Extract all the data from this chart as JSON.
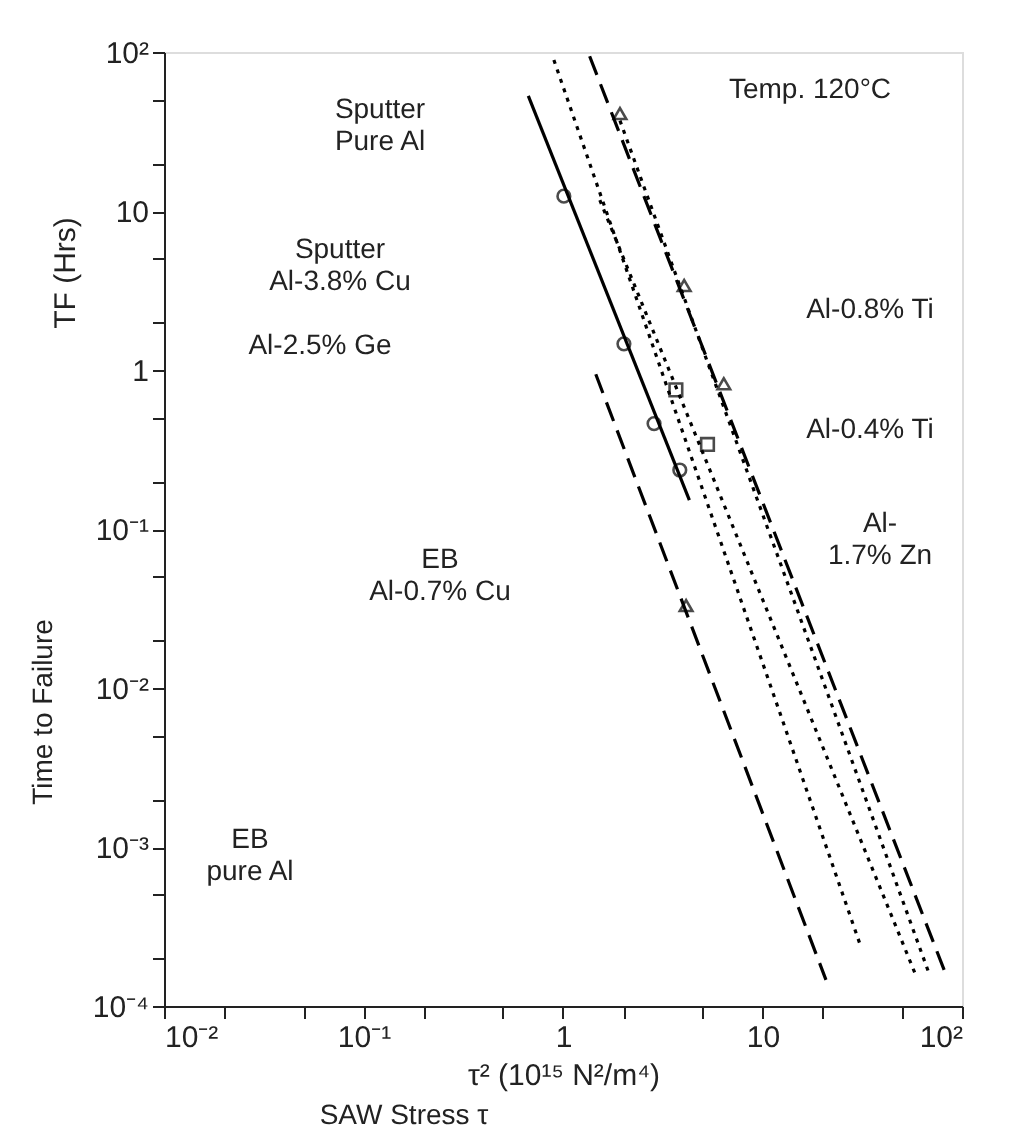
{
  "chart_data": {
    "type": "line",
    "xlabel": "τ² (10¹⁵ N²/m⁴)",
    "ylabel": "TF (Hrs)",
    "log": "xy",
    "grid": false,
    "xlim": [
      0.01,
      100
    ],
    "ylim": [
      0.0001,
      100
    ],
    "xticks": [
      {
        "value": 0.01,
        "label": "10⁻²"
      },
      {
        "value": 0.02,
        "label": null
      },
      {
        "value": 0.05,
        "label": null
      },
      {
        "value": 0.1,
        "label": "10⁻¹"
      },
      {
        "value": 0.2,
        "label": null
      },
      {
        "value": 0.5,
        "label": null
      },
      1,
      {
        "value": 2,
        "label": null
      },
      {
        "value": 5,
        "label": null
      },
      10,
      {
        "value": 20,
        "label": null
      },
      {
        "value": 50,
        "label": null
      },
      {
        "value": 100,
        "label": "10²"
      }
    ],
    "yticks": [
      {
        "value": 0.0001,
        "label": "10⁻⁴"
      },
      {
        "value": 0.0002,
        "label": null
      },
      {
        "value": 0.0005,
        "label": null
      },
      {
        "value": 0.001,
        "label": "10⁻³"
      },
      {
        "value": 0.002,
        "label": null
      },
      {
        "value": 0.005,
        "label": null
      },
      {
        "value": 0.01,
        "label": "10⁻²"
      },
      {
        "value": 0.02,
        "label": null
      },
      {
        "value": 0.05,
        "label": null
      },
      {
        "value": 0.1,
        "label": "10⁻¹"
      },
      {
        "value": 0.2,
        "label": null
      },
      {
        "value": 0.5,
        "label": null
      },
      1,
      {
        "value": 2,
        "label": null
      },
      {
        "value": 5,
        "label": null
      },
      10,
      {
        "value": 20,
        "label": null
      },
      {
        "value": 50,
        "label": null
      },
      {
        "value": 100,
        "label": "10²"
      }
    ],
    "series": [
      {
        "line_style": "solid",
        "color": "#000000",
        "x": [
          0.67,
          4.3
        ],
        "values": [
          53,
          0.152
        ]
      },
      {
        "line_style": "dashed",
        "color": "#000000",
        "x": [
          1.46,
          20.8
        ],
        "values": [
          0.94,
          0.000146
        ]
      },
      {
        "line_style": "dotted",
        "color": "#000000",
        "x": [
          0.9,
          30.8
        ],
        "values": [
          89,
          0.000245
        ]
      },
      {
        "line_style": "dotted",
        "color": "#000000",
        "x": [
          1.53,
          58.8
        ],
        "values": [
          11.7,
          0.000155
        ]
      },
      {
        "line_style": "dashed",
        "color": "#000000",
        "x": [
          1.36,
          83
        ],
        "values": [
          94,
          0.000158
        ]
      },
      {
        "line_style": "dotted",
        "color": "#000000",
        "x": [
          1.93,
          69
        ],
        "values": [
          37,
          0.000155
        ]
      },
      {
        "type": "scatter",
        "marker": "circle",
        "color": "#000000",
        "x": [
          1.01,
          2.02,
          2.86,
          3.85
        ],
        "values": [
          12.4,
          1.46,
          0.46,
          0.235
        ]
      },
      {
        "type": "scatter",
        "marker": "triangle",
        "color": "#000000",
        "x": [
          1.93,
          4.05,
          6.4,
          4.14
        ],
        "values": [
          41,
          3.4,
          0.82,
          0.033
        ]
      },
      {
        "type": "scatter",
        "marker": "square",
        "color": "#000000",
        "x": [
          3.68,
          5.3
        ],
        "values": [
          0.75,
          0.34
        ]
      }
    ],
    "annotations": [
      "Sputter\nPure Al",
      "Sputter\nAl-3.8% Cu",
      "Al-2.5% Ge",
      "Temp. 120°C",
      "Al-0.8% Ti",
      "Al-0.4% Ti",
      "Al-\n1.7% Zn",
      "EB\nAl-0.7% Cu",
      "EB\npure Al",
      "Time to Failure",
      "SAW Stress τ"
    ]
  }
}
